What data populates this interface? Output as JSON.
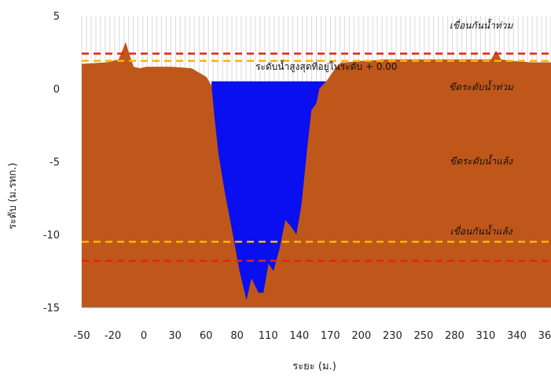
{
  "chart_data": {
    "type": "area",
    "xlabel": "ระยะ (ม.)",
    "ylabel": "ระดับ (ม.รทก.)",
    "ylim": [
      -15,
      5
    ],
    "yticks": [
      5,
      0,
      -5,
      -10,
      -15
    ],
    "xtick_labels": [
      "-50",
      "-20",
      "0",
      "30",
      "60",
      "80",
      "110",
      "140",
      "170",
      "200",
      "230",
      "250",
      "280",
      "310",
      "340",
      "360"
    ],
    "xlim": [
      -70,
      400
    ],
    "grid": "vertical",
    "colors": {
      "ground": "#c0571a",
      "water": "#0a0ff0",
      "red_line": "#e8201b",
      "orange_line": "#f5b800",
      "grid": "#d9d9d9"
    },
    "ground_profile": {
      "x": [
        -70,
        -45,
        -33,
        -30,
        -26,
        -22,
        -18,
        -12,
        -5,
        0,
        5,
        20,
        40,
        55,
        60,
        63,
        67,
        73,
        80,
        88,
        95,
        100,
        107,
        112,
        117,
        122,
        128,
        134,
        140,
        145,
        150,
        156,
        160,
        165,
        168,
        172,
        175,
        180,
        185,
        190,
        195,
        210,
        218,
        230,
        240,
        260,
        300,
        330,
        340,
        345,
        350,
        360,
        380,
        400
      ],
      "y": [
        1.7,
        1.8,
        2.0,
        2.5,
        3.2,
        2.3,
        1.5,
        1.4,
        1.5,
        1.5,
        1.5,
        1.5,
        1.4,
        0.8,
        0.2,
        -2.0,
        -4.5,
        -7.0,
        -9.5,
        -12.5,
        -14.5,
        -13.0,
        -14.0,
        -14.0,
        -12.0,
        -12.5,
        -11.0,
        -9.0,
        -9.5,
        -10.0,
        -8.0,
        -4.0,
        -1.5,
        -1.0,
        0.0,
        0.3,
        0.5,
        1.0,
        1.5,
        1.8,
        1.8,
        1.9,
        1.9,
        2.0,
        2.0,
        2.0,
        2.0,
        2.0,
        2.0,
        2.6,
        2.0,
        1.9,
        1.8,
        1.8
      ]
    },
    "water_level": 0.5,
    "reference_lines": [
      {
        "y": 2.4,
        "color": "red",
        "label": "เขื่อนกันน้ำท่วม"
      },
      {
        "y": 1.9,
        "color": "orange",
        "label": "ระดับน้ำสูงสุดที่อยู่ในระดับ + 0.00"
      },
      {
        "y": -10.5,
        "color": "orange",
        "label": ""
      },
      {
        "y": -11.8,
        "color": "red",
        "label": ""
      }
    ],
    "annotations": [
      {
        "text": "เขื่อนกันน้ำท่วม",
        "x": 330,
        "y": 4.1
      },
      {
        "text": "ระดับน้ำสูงสุดที่อยู่ในระดับ + 0.00",
        "x": 175,
        "y": 1.3
      },
      {
        "text": "ขีดระดับน้ำท่วม",
        "x": 330,
        "y": -0.1
      },
      {
        "text": "ขีดระดับน้ำแล้ง",
        "x": 330,
        "y": -5.2
      },
      {
        "text": "เขื่อนกันน้ำแล้ง",
        "x": 330,
        "y": -10.0
      }
    ]
  }
}
